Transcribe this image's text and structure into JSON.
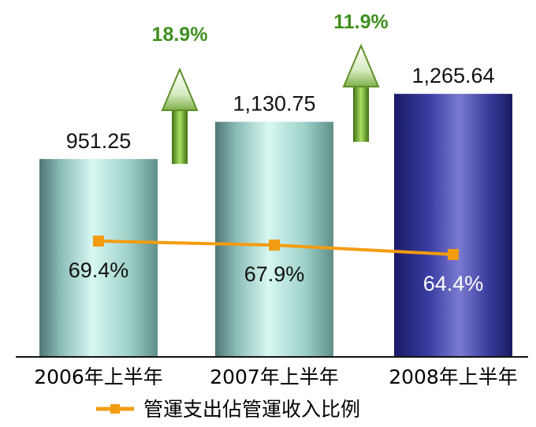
{
  "chart_data": {
    "type": "bar",
    "categories": [
      "2006年上半年",
      "2007年上半年",
      "2008年上半年"
    ],
    "series": [
      {
        "values": [
          951.25,
          1130.75,
          1265.64
        ],
        "labels": [
          "951.25",
          "1,130.75",
          "1,265.64"
        ]
      },
      {
        "name": "管運支出佔管運收入比例",
        "type": "line",
        "values": [
          69.4,
          67.9,
          64.4
        ],
        "labels": [
          "69.4%",
          "67.9%",
          "64.4%"
        ]
      }
    ],
    "growth": [
      {
        "label": "18.9%",
        "value": 18.9
      },
      {
        "label": "11.9%",
        "value": 11.9
      }
    ],
    "legend": {
      "label": "管運支出佔管運收入比例",
      "position": "bottom"
    },
    "colors": {
      "bar_light": "#8ad7cc",
      "bar_highlight": "#2a2c8c",
      "line": "#f39c12",
      "growth_arrow": "#6aa121",
      "growth_text": "#3f8f1f"
    }
  }
}
